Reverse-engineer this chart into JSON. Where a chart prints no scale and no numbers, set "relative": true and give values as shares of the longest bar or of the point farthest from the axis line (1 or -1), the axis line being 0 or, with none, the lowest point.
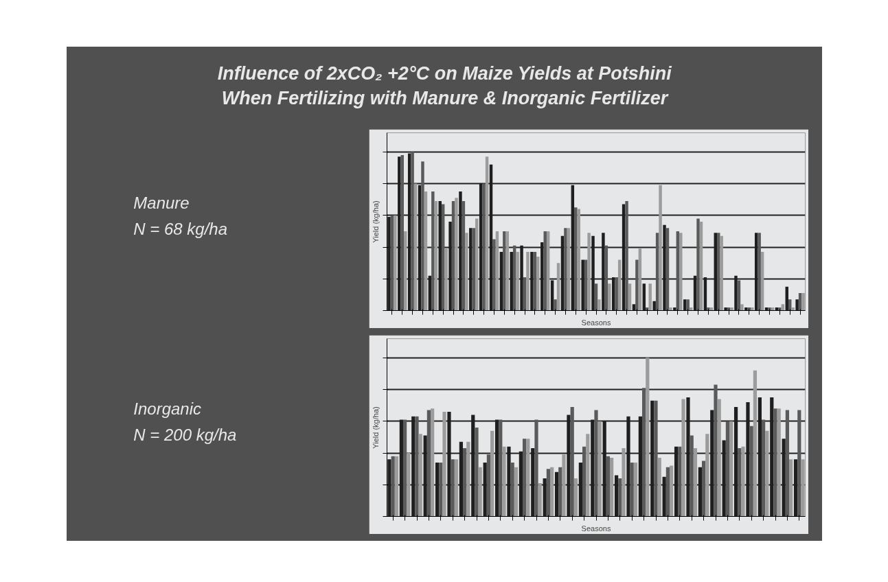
{
  "chart_data": [
    {
      "type": "bar",
      "title": "Influence of 2xCO₂ +2°C on Maize Yields at Potshini When Fertilizing with Manure & Inorganic Fertilizer",
      "annotations": [
        "Manure",
        "N = 68 kg/ha"
      ],
      "xlabel": "Seasons",
      "ylabel": "Yield (kg/ha)",
      "relative": true,
      "grid": "y",
      "categories": [
        null,
        null,
        null,
        null,
        null,
        null,
        null,
        null,
        null,
        null,
        null,
        null,
        null,
        null,
        null,
        null,
        null,
        null,
        null,
        null,
        null,
        null,
        null,
        null,
        null,
        null,
        null,
        null,
        null,
        null,
        null,
        null,
        null,
        null,
        null,
        null,
        null,
        null,
        null,
        null,
        null
      ],
      "series": [
        {
          "color": "#1f1f1f",
          "values": [
            0.59,
            0.97,
            0.99,
            0.79,
            0.22,
            0.69,
            0.56,
            0.75,
            0.52,
            0.8,
            0.92,
            0.37,
            0.37,
            0.41,
            0.37,
            0.43,
            0.19,
            0.47,
            0.79,
            0.32,
            0.47,
            0.49,
            0.21,
            0.67,
            0.04,
            0.17,
            0.06,
            0.54,
            0.02,
            0.07,
            0.22,
            0.21,
            0.49,
            0.02,
            0.22,
            0.02,
            0.49,
            0.02,
            0.02,
            0.15,
            0.07
          ]
        },
        {
          "color": "#5a5a5a",
          "values": [
            0.6,
            0.98,
            1.0,
            0.94,
            0.75,
            0.67,
            0.69,
            0.69,
            0.52,
            0.8,
            0.45,
            0.5,
            0.41,
            0.21,
            0.37,
            0.5,
            0.07,
            0.52,
            0.65,
            0.32,
            0.17,
            0.41,
            0.21,
            0.69,
            0.32,
            0.02,
            0.49,
            0.52,
            0.5,
            0.07,
            0.58,
            0.02,
            0.49,
            0.02,
            0.19,
            0.02,
            0.49,
            0.02,
            0.02,
            0.07,
            0.11
          ]
        },
        {
          "color": "#9c9c9c",
          "values": [
            0.6,
            0.5,
            0.8,
            0.75,
            0.69,
            0.39,
            0.71,
            0.49,
            0.58,
            0.97,
            0.5,
            0.5,
            0.37,
            0.37,
            0.34,
            0.5,
            0.3,
            0.52,
            0.64,
            0.49,
            0.07,
            0.17,
            0.32,
            0.17,
            0.39,
            0.17,
            0.79,
            0.02,
            0.49,
            0.02,
            0.56,
            0.02,
            0.47,
            0.02,
            0.04,
            0.02,
            0.37,
            0.02,
            0.04,
            0.02,
            0.11
          ]
        }
      ]
    },
    {
      "type": "bar",
      "annotations": [
        "Inorganic",
        "N = 200 kg/ha"
      ],
      "xlabel": "Seasons",
      "ylabel": "Yield (kg/ha)",
      "relative": true,
      "grid": "y",
      "categories": [
        null,
        null,
        null,
        null,
        null,
        null,
        null,
        null,
        null,
        null,
        null,
        null,
        null,
        null,
        null,
        null,
        null,
        null,
        null,
        null,
        null,
        null,
        null,
        null,
        null,
        null,
        null,
        null,
        null,
        null,
        null,
        null,
        null,
        null,
        null
      ],
      "series": [
        {
          "color": "#1f1f1f",
          "values": [
            0.36,
            0.61,
            0.63,
            0.51,
            0.34,
            0.66,
            0.47,
            0.64,
            0.34,
            0.61,
            0.44,
            0.41,
            0.43,
            0.24,
            0.28,
            0.64,
            0.34,
            0.61,
            0.6,
            0.26,
            0.63,
            0.63,
            0.73,
            0.25,
            0.44,
            0.75,
            0.31,
            0.67,
            0.48,
            0.69,
            0.72,
            0.75,
            0.75,
            0.49,
            0.36
          ]
        },
        {
          "color": "#5a5a5a",
          "values": [
            0.38,
            0.61,
            0.63,
            0.67,
            0.34,
            0.36,
            0.43,
            0.56,
            0.39,
            0.61,
            0.34,
            0.49,
            0.61,
            0.3,
            0.31,
            0.69,
            0.44,
            0.67,
            0.38,
            0.24,
            0.34,
            0.81,
            0.73,
            0.31,
            0.44,
            0.51,
            0.35,
            0.83,
            0.6,
            0.43,
            0.57,
            0.61,
            0.68,
            0.67,
            0.67
          ]
        },
        {
          "color": "#9c9c9c",
          "values": [
            0.38,
            0.4,
            0.52,
            0.68,
            0.66,
            0.36,
            0.47,
            0.31,
            0.54,
            0.44,
            0.31,
            0.49,
            0.21,
            0.31,
            0.39,
            0.24,
            0.52,
            0.6,
            0.37,
            0.43,
            0.34,
            1.0,
            0.37,
            0.32,
            0.74,
            0.43,
            0.52,
            0.74,
            0.6,
            0.44,
            0.92,
            0.54,
            0.68,
            0.36,
            0.36
          ]
        }
      ]
    }
  ]
}
